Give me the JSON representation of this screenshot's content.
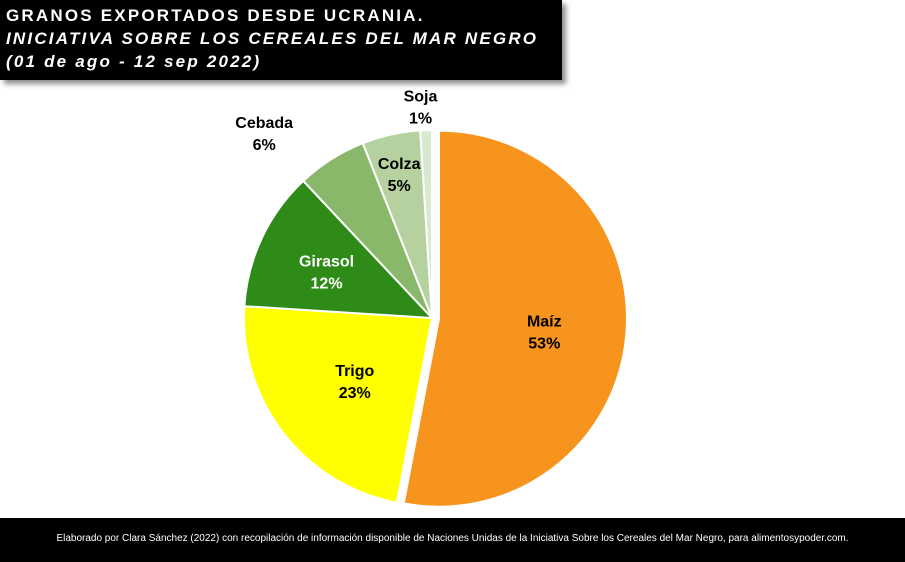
{
  "title": {
    "line1": "GRANOS EXPORTADOS DESDE UCRANIA.",
    "line2": "INICIATIVA SOBRE LOS CEREALES DEL MAR NEGRO",
    "line3": "(01 de ago - 12 sep 2022)"
  },
  "chart_data": {
    "type": "pie",
    "categories": [
      "Maíz",
      "Trigo",
      "Girasol",
      "Cebada",
      "Colza",
      "Soja"
    ],
    "values": [
      53,
      23,
      12,
      6,
      5,
      1
    ],
    "labels": [
      "53%",
      "23%",
      "12%",
      "6%",
      "5%",
      "1%"
    ],
    "colors": [
      "#f7941d",
      "#ffff00",
      "#2e8b17",
      "#8ab86a",
      "#b5d1a0",
      "#d8e9cf"
    ],
    "exploded": [
      "Maíz"
    ],
    "title": "GRANOS EXPORTADOS DESDE UCRANIA. INICIATIVA SOBRE LOS CEREALES DEL MAR NEGRO (01 de ago - 12 sep 2022)"
  },
  "footer": {
    "text": "Elaborado  por Clara Sánchez (2022) con recopilación  de información  disponible  de Naciones Unidas de la Iniciativa Sobre los Cereales del Mar Negro, para alimentosypoder.com."
  }
}
